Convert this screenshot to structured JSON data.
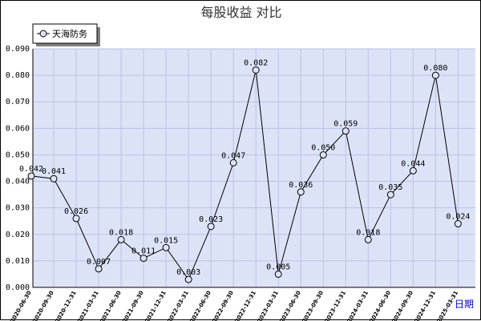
{
  "chart_data": {
    "type": "line",
    "title": "每股收益  对比",
    "xlabel": "日期",
    "ylabel": "",
    "ylim": [
      0,
      0.09
    ],
    "yticks": [
      "0.000",
      "0.010",
      "0.020",
      "0.030",
      "0.040",
      "0.050",
      "0.060",
      "0.070",
      "0.080",
      "0.090"
    ],
    "grid": true,
    "legend_position": "top-left",
    "categories": [
      "2020-06-30",
      "2020-09-30",
      "2020-12-31",
      "2021-03-31",
      "2021-06-30",
      "2021-09-30",
      "2021-12-31",
      "2022-03-31",
      "2022-06-30",
      "2022-09-30",
      "2022-12-31",
      "2023-03-31",
      "2023-06-30",
      "2023-09-30",
      "2023-12-31",
      "2024-03-31",
      "2024-06-30",
      "2024-09-30",
      "2024-12-31",
      "2025-03-31"
    ],
    "series": [
      {
        "name": "天海防务",
        "values": [
          0.042,
          0.041,
          0.026,
          0.007,
          0.018,
          0.011,
          0.015,
          0.003,
          0.023,
          0.047,
          0.082,
          0.005,
          0.036,
          0.05,
          0.059,
          0.018,
          0.035,
          0.044,
          0.08,
          0.024
        ],
        "labels": [
          "0.042",
          "0.041",
          "0.026",
          "0.007",
          "0.018",
          "0.011",
          "0.015",
          "0.003",
          "0.023",
          "0.047",
          "0.082",
          "0.005",
          "0.036",
          "0.050",
          "0.059",
          "0.018",
          "0.035",
          "0.044",
          "0.080",
          "0.024"
        ]
      }
    ],
    "colors": {
      "plot_background": "#dde3f7",
      "grid": "#b8c2e6",
      "line": "#000000",
      "marker": "#000000",
      "xlabel": "#0000cc"
    }
  }
}
